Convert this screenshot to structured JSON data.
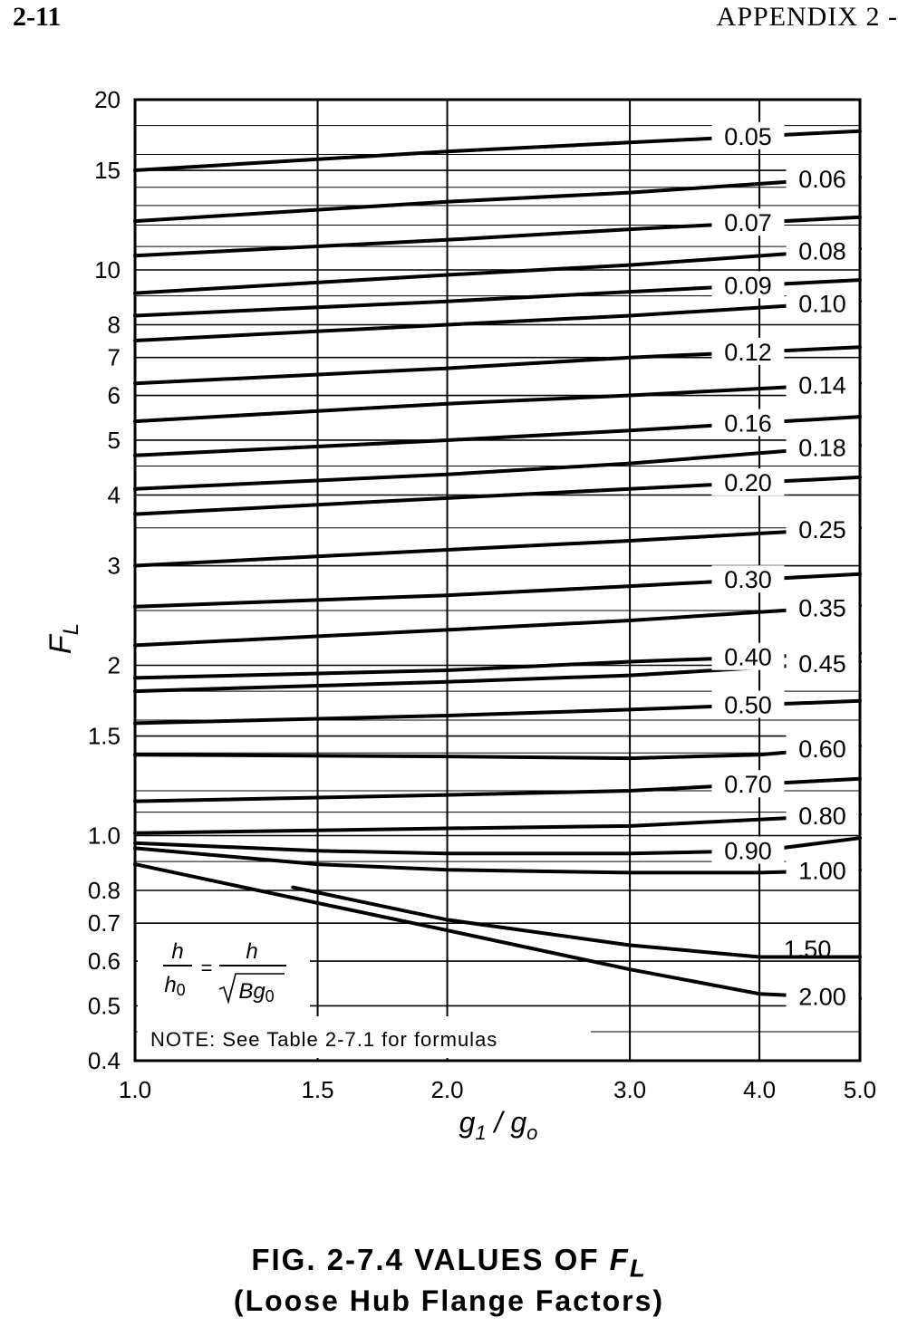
{
  "header": {
    "page_number": "2-11",
    "section": "APPENDIX 2 -"
  },
  "figure": {
    "title_prefix": "FIG. 2-7.4 VALUES OF ",
    "title_symbol": "F",
    "title_subscript": "L",
    "subtitle": "(Loose Hub Flange Factors)"
  },
  "chart_data": {
    "type": "line",
    "x_scale": "log",
    "y_scale": "log",
    "xlim": [
      1.0,
      5.0
    ],
    "ylim": [
      0.4,
      20
    ],
    "grid": true,
    "xticks": [
      {
        "value": 1.0,
        "label": "1.0"
      },
      {
        "value": 1.5,
        "label": "1.5"
      },
      {
        "value": 2.0,
        "label": "2.0"
      },
      {
        "value": 3.0,
        "label": "3.0"
      },
      {
        "value": 4.0,
        "label": "4.0"
      },
      {
        "value": 5.0,
        "label": "5.0"
      }
    ],
    "yticks": [
      {
        "value": 20,
        "label": "20"
      },
      {
        "value": 15,
        "label": "15"
      },
      {
        "value": 10,
        "label": "10"
      },
      {
        "value": 8,
        "label": "8"
      },
      {
        "value": 7,
        "label": "7"
      },
      {
        "value": 6,
        "label": "6"
      },
      {
        "value": 5,
        "label": "5"
      },
      {
        "value": 4,
        "label": "4"
      },
      {
        "value": 3,
        "label": "3"
      },
      {
        "value": 2,
        "label": "2"
      },
      {
        "value": 1.5,
        "label": "1.5"
      },
      {
        "value": 1.0,
        "label": "1.0"
      },
      {
        "value": 0.8,
        "label": "0.8"
      },
      {
        "value": 0.7,
        "label": "0.7"
      },
      {
        "value": 0.6,
        "label": "0.6"
      },
      {
        "value": 0.5,
        "label": "0.5"
      },
      {
        "value": 0.4,
        "label": "0.4"
      }
    ],
    "y_minor_lines": [
      18,
      16,
      14,
      13,
      12,
      11,
      9,
      4.5,
      3.5,
      2.5,
      1.8,
      1.6,
      1.4,
      1.2,
      1.1,
      0.9,
      0.45
    ],
    "xlabel": {
      "main": "g",
      "sub1": "1",
      "sep": " / ",
      "main2": "g",
      "sub2": "o"
    },
    "ylabel": {
      "main": "F",
      "sub": "L"
    },
    "formula": {
      "num_left": "h",
      "den_left": "h",
      "den_left_sub": "0",
      "num_right": "h",
      "den_right": "Bg",
      "den_right_sub": "0",
      "equals": "="
    },
    "note": "NOTE: See Table 2-7.1 for formulas",
    "series": [
      {
        "name": "0.05",
        "label_at": 3.9,
        "points": [
          [
            1.0,
            15.0
          ],
          [
            2.0,
            16.2
          ],
          [
            3.0,
            16.8
          ],
          [
            5.0,
            17.6
          ]
        ]
      },
      {
        "name": "0.06",
        "label_at": 4.6,
        "points": [
          [
            1.0,
            12.2
          ],
          [
            2.0,
            13.2
          ],
          [
            3.0,
            13.7
          ],
          [
            5.0,
            14.6
          ]
        ]
      },
      {
        "name": "0.07",
        "label_at": 3.9,
        "points": [
          [
            1.0,
            10.6
          ],
          [
            2.0,
            11.3
          ],
          [
            3.0,
            11.8
          ],
          [
            5.0,
            12.4
          ]
        ]
      },
      {
        "name": "0.08",
        "label_at": 4.6,
        "points": [
          [
            1.0,
            9.1
          ],
          [
            2.0,
            9.8
          ],
          [
            3.0,
            10.2
          ],
          [
            5.0,
            10.9
          ]
        ]
      },
      {
        "name": "0.09",
        "label_at": 3.9,
        "points": [
          [
            1.0,
            8.3
          ],
          [
            2.0,
            8.8
          ],
          [
            3.0,
            9.15
          ],
          [
            5.0,
            9.6
          ]
        ]
      },
      {
        "name": "0.10",
        "label_at": 4.6,
        "points": [
          [
            1.0,
            7.5
          ],
          [
            2.0,
            8.0
          ],
          [
            3.0,
            8.3
          ],
          [
            5.0,
            8.8
          ]
        ]
      },
      {
        "name": "0.12",
        "label_at": 3.9,
        "points": [
          [
            1.0,
            6.3
          ],
          [
            2.0,
            6.7
          ],
          [
            3.0,
            7.0
          ],
          [
            5.0,
            7.3
          ]
        ]
      },
      {
        "name": "0.14",
        "label_at": 4.6,
        "points": [
          [
            1.0,
            5.4
          ],
          [
            2.0,
            5.8
          ],
          [
            3.0,
            6.0
          ],
          [
            5.0,
            6.3
          ]
        ]
      },
      {
        "name": "0.16",
        "label_at": 3.9,
        "points": [
          [
            1.0,
            4.7
          ],
          [
            2.0,
            5.0
          ],
          [
            3.0,
            5.2
          ],
          [
            5.0,
            5.5
          ]
        ]
      },
      {
        "name": "0.18",
        "label_at": 4.6,
        "points": [
          [
            1.0,
            4.1
          ],
          [
            2.0,
            4.35
          ],
          [
            3.0,
            4.55
          ],
          [
            5.0,
            4.9
          ]
        ]
      },
      {
        "name": "0.20",
        "label_at": 3.9,
        "points": [
          [
            1.0,
            3.7
          ],
          [
            2.0,
            3.95
          ],
          [
            3.0,
            4.1
          ],
          [
            5.0,
            4.3
          ]
        ]
      },
      {
        "name": "0.25",
        "label_at": 4.6,
        "points": [
          [
            1.0,
            3.0
          ],
          [
            2.0,
            3.2
          ],
          [
            3.0,
            3.32
          ],
          [
            5.0,
            3.5
          ]
        ]
      },
      {
        "name": "0.30",
        "label_at": 3.9,
        "points": [
          [
            1.0,
            2.54
          ],
          [
            2.0,
            2.66
          ],
          [
            3.0,
            2.76
          ],
          [
            5.0,
            2.9
          ]
        ]
      },
      {
        "name": "0.35",
        "label_at": 4.6,
        "points": [
          [
            1.0,
            2.17
          ],
          [
            2.0,
            2.31
          ],
          [
            3.0,
            2.4
          ],
          [
            5.0,
            2.55
          ]
        ]
      },
      {
        "name": "0.40",
        "label_at": 3.9,
        "points": [
          [
            1.0,
            1.9
          ],
          [
            2.0,
            1.96
          ],
          [
            3.0,
            2.03
          ],
          [
            5.0,
            2.1
          ]
        ]
      },
      {
        "name": "0.45",
        "label_at": 4.6,
        "points": [
          [
            1.0,
            1.8
          ],
          [
            2.0,
            1.87
          ],
          [
            3.0,
            1.92
          ],
          [
            5.0,
            2.03
          ]
        ]
      },
      {
        "name": "0.50",
        "label_at": 3.9,
        "points": [
          [
            1.0,
            1.58
          ],
          [
            2.0,
            1.63
          ],
          [
            3.0,
            1.67
          ],
          [
            5.0,
            1.73
          ]
        ]
      },
      {
        "name": "0.60",
        "label_at": 4.6,
        "points": [
          [
            1.0,
            1.39
          ],
          [
            2.0,
            1.38
          ],
          [
            3.0,
            1.37
          ],
          [
            4.0,
            1.39
          ],
          [
            5.0,
            1.44
          ]
        ]
      },
      {
        "name": "0.70",
        "label_at": 3.9,
        "points": [
          [
            1.0,
            1.15
          ],
          [
            2.0,
            1.18
          ],
          [
            3.0,
            1.2
          ],
          [
            5.0,
            1.26
          ]
        ]
      },
      {
        "name": "0.80",
        "label_at": 4.6,
        "points": [
          [
            1.0,
            1.01
          ],
          [
            2.0,
            1.03
          ],
          [
            3.0,
            1.04
          ],
          [
            5.0,
            1.09
          ]
        ]
      },
      {
        "name": "0.90",
        "label_at": 3.9,
        "points": [
          [
            1.0,
            0.97
          ],
          [
            1.5,
            0.94
          ],
          [
            2.0,
            0.93
          ],
          [
            3.0,
            0.93
          ],
          [
            4.0,
            0.94
          ],
          [
            5.0,
            0.99
          ]
        ]
      },
      {
        "name": "1.00",
        "label_at": 4.6,
        "points": [
          [
            1.0,
            0.95
          ],
          [
            1.5,
            0.89
          ],
          [
            2.0,
            0.87
          ],
          [
            3.0,
            0.86
          ],
          [
            4.0,
            0.86
          ],
          [
            5.0,
            0.87
          ]
        ]
      },
      {
        "name": "1.50",
        "label_at": null,
        "points": [
          [
            1.42,
            0.81
          ],
          [
            2.0,
            0.71
          ],
          [
            3.0,
            0.64
          ],
          [
            4.0,
            0.61
          ],
          [
            5.0,
            0.61
          ]
        ]
      },
      {
        "name": "2.00",
        "label_at": 4.6,
        "points": [
          [
            1.0,
            0.89
          ],
          [
            1.5,
            0.76
          ],
          [
            2.0,
            0.68
          ],
          [
            3.0,
            0.58
          ],
          [
            4.0,
            0.525
          ],
          [
            5.0,
            0.515
          ]
        ]
      }
    ],
    "free_labels": [
      {
        "name": "1.50",
        "x": 4.45,
        "y": 0.63
      }
    ]
  }
}
